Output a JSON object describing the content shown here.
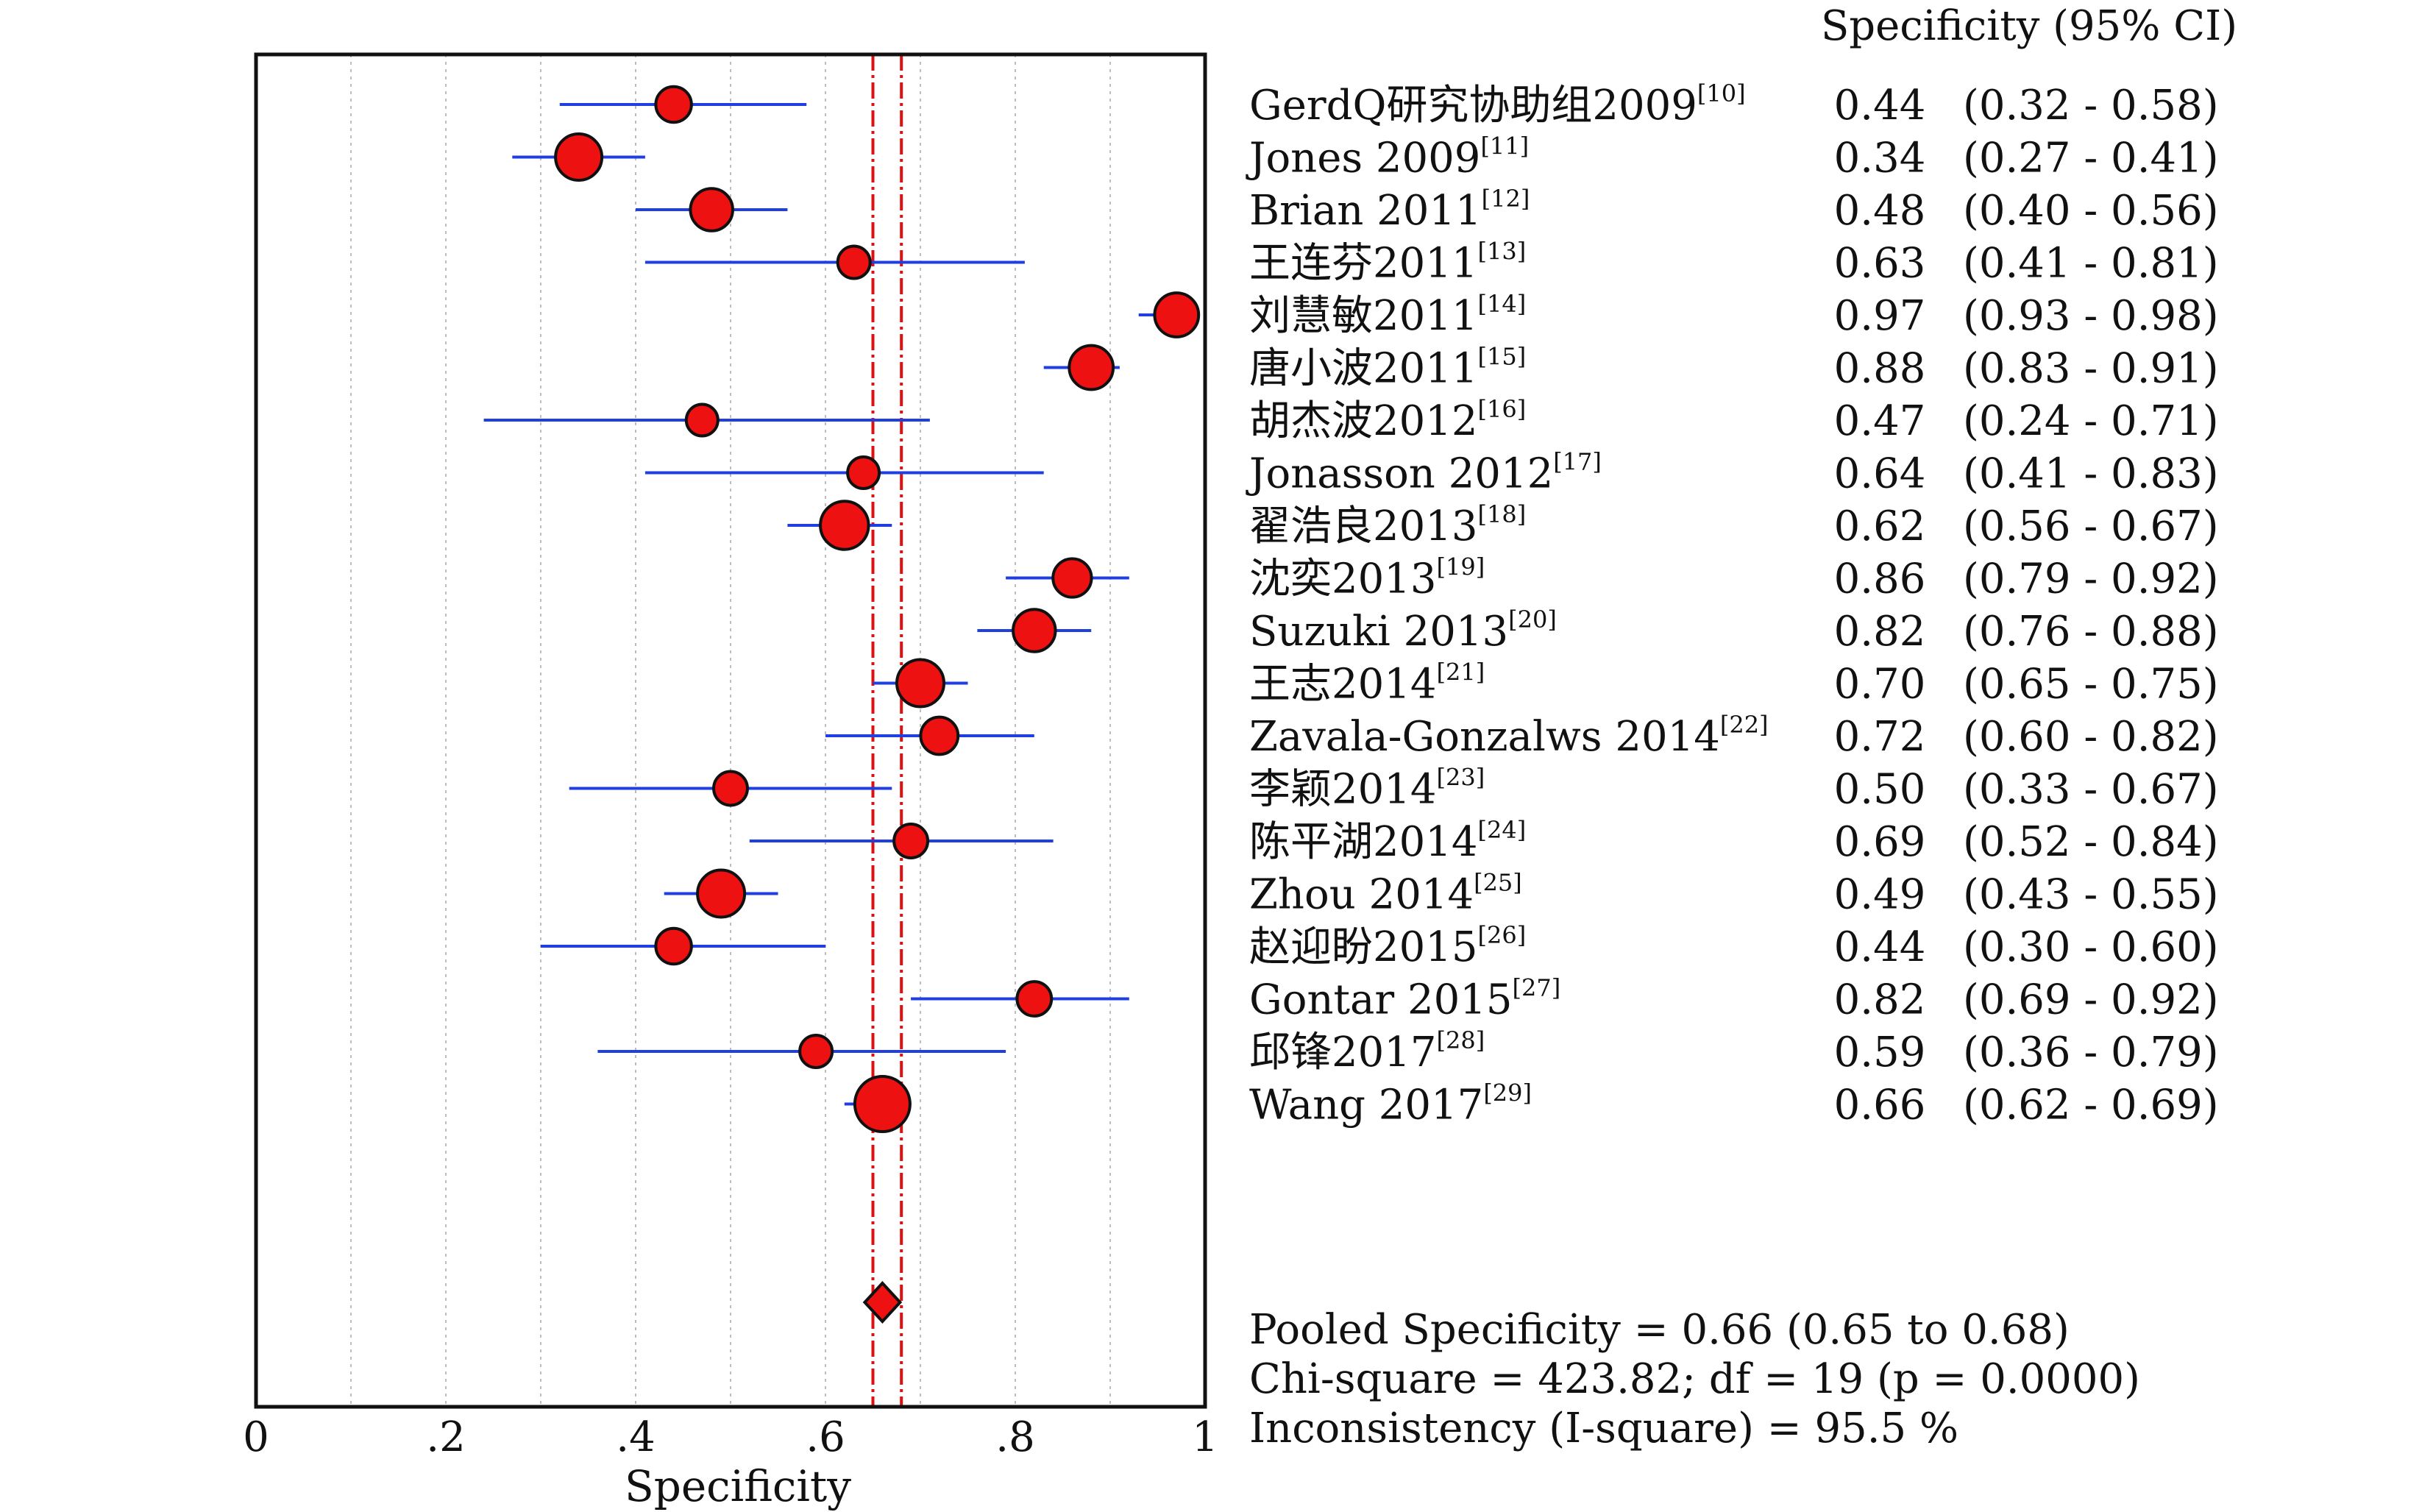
{
  "chart_data": {
    "type": "forest",
    "xlabel": "Specificity",
    "xlim": [
      0,
      1
    ],
    "x_ticks": [
      "0",
      ".2",
      ".4",
      ".6",
      ".8",
      "1"
    ],
    "grid": "vertical dotted",
    "header": "Specificity (95% CI)",
    "studies": [
      {
        "label": "GerdQ研究协助组2009",
        "ref": "[10]",
        "est": 0.44,
        "lo": 0.32,
        "hi": 0.58,
        "est_text": "0.44",
        "ci_text": "(0.32 - 0.58)",
        "weight": 1.5
      },
      {
        "label": "Jones 2009",
        "ref": "[11]",
        "est": 0.34,
        "lo": 0.27,
        "hi": 0.41,
        "est_text": "0.34",
        "ci_text": "(0.27 - 0.41)",
        "weight": 3.8
      },
      {
        "label": "Brian 2011",
        "ref": "[12]",
        "est": 0.48,
        "lo": 0.4,
        "hi": 0.56,
        "est_text": "0.48",
        "ci_text": "(0.40 - 0.56)",
        "weight": 2.8
      },
      {
        "label": "王连芬2011",
        "ref": "[13]",
        "est": 0.63,
        "lo": 0.41,
        "hi": 0.81,
        "est_text": "0.63",
        "ci_text": "(0.41 - 0.81)",
        "weight": 1.0
      },
      {
        "label": "刘慧敏2011",
        "ref": "[14]",
        "est": 0.97,
        "lo": 0.93,
        "hi": 0.98,
        "est_text": "0.97",
        "ci_text": "(0.93 - 0.98)",
        "weight": 3.2
      },
      {
        "label": "唐小波2011",
        "ref": "[15]",
        "est": 0.88,
        "lo": 0.83,
        "hi": 0.91,
        "est_text": "0.88",
        "ci_text": "(0.83 - 0.91)",
        "weight": 3.2
      },
      {
        "label": "胡杰波2012",
        "ref": "[16]",
        "est": 0.47,
        "lo": 0.24,
        "hi": 0.71,
        "est_text": "0.47",
        "ci_text": "(0.24 - 0.71)",
        "weight": 0.9
      },
      {
        "label": "Jonasson 2012",
        "ref": "[17]",
        "est": 0.64,
        "lo": 0.41,
        "hi": 0.83,
        "est_text": "0.64",
        "ci_text": "(0.41 - 0.83)",
        "weight": 0.9
      },
      {
        "label": "翟浩良2013",
        "ref": "[18]",
        "est": 0.62,
        "lo": 0.56,
        "hi": 0.67,
        "est_text": "0.62",
        "ci_text": "(0.56 - 0.67)",
        "weight": 4.3
      },
      {
        "label": "沈奕2013",
        "ref": "[19]",
        "est": 0.86,
        "lo": 0.79,
        "hi": 0.92,
        "est_text": "0.86",
        "ci_text": "(0.79 - 0.92)",
        "weight": 2.0
      },
      {
        "label": "Suzuki 2013",
        "ref": "[20]",
        "est": 0.82,
        "lo": 0.76,
        "hi": 0.88,
        "est_text": "0.82",
        "ci_text": "(0.76 - 0.88)",
        "weight": 2.8
      },
      {
        "label": "王志2014",
        "ref": "[21]",
        "est": 0.7,
        "lo": 0.65,
        "hi": 0.75,
        "est_text": "0.70",
        "ci_text": "(0.65 - 0.75)",
        "weight": 4.0
      },
      {
        "label": "Zavala-Gonzalws 2014",
        "ref": "[22]",
        "est": 0.72,
        "lo": 0.6,
        "hi": 0.82,
        "est_text": "0.72",
        "ci_text": "(0.60 - 0.82)",
        "weight": 1.8
      },
      {
        "label": "李颖2014",
        "ref": "[23]",
        "est": 0.5,
        "lo": 0.33,
        "hi": 0.67,
        "est_text": "0.50",
        "ci_text": "(0.33 - 0.67)",
        "weight": 1.2
      },
      {
        "label": "陈平湖2014",
        "ref": "[24]",
        "est": 0.69,
        "lo": 0.52,
        "hi": 0.84,
        "est_text": "0.69",
        "ci_text": "(0.52 - 0.84)",
        "weight": 1.2
      },
      {
        "label": "Zhou 2014",
        "ref": "[25]",
        "est": 0.49,
        "lo": 0.43,
        "hi": 0.55,
        "est_text": "0.49",
        "ci_text": "(0.43 - 0.55)",
        "weight": 4.0
      },
      {
        "label": "赵迎盼2015",
        "ref": "[26]",
        "est": 0.44,
        "lo": 0.3,
        "hi": 0.6,
        "est_text": "0.44",
        "ci_text": "(0.30 - 0.60)",
        "weight": 1.5
      },
      {
        "label": "Gontar 2015",
        "ref": "[27]",
        "est": 0.82,
        "lo": 0.69,
        "hi": 0.92,
        "est_text": "0.82",
        "ci_text": "(0.69 - 0.92)",
        "weight": 1.3
      },
      {
        "label": "邱锋2017",
        "ref": "[28]",
        "est": 0.59,
        "lo": 0.36,
        "hi": 0.79,
        "est_text": "0.59",
        "ci_text": "(0.36 - 0.79)",
        "weight": 1.0
      },
      {
        "label": "Wang 2017",
        "ref": "[29]",
        "est": 0.66,
        "lo": 0.62,
        "hi": 0.69,
        "est_text": "0.66",
        "ci_text": "(0.62 - 0.69)",
        "weight": 6.5
      }
    ],
    "pooled": {
      "est": 0.66,
      "lo": 0.65,
      "hi": 0.68
    },
    "summary_lines": [
      "Pooled Specificity = 0.66 (0.65 to 0.68)",
      "Chi-square = 423.82; df =  19 (p = 0.0000)",
      "Inconsistency (I-square) = 95.5 %"
    ],
    "colors": {
      "ci_line": "#1f3fe0",
      "point_fill": "#ee1111",
      "pooled_line": "#dd1111",
      "grid": "#bdbdbd"
    }
  }
}
